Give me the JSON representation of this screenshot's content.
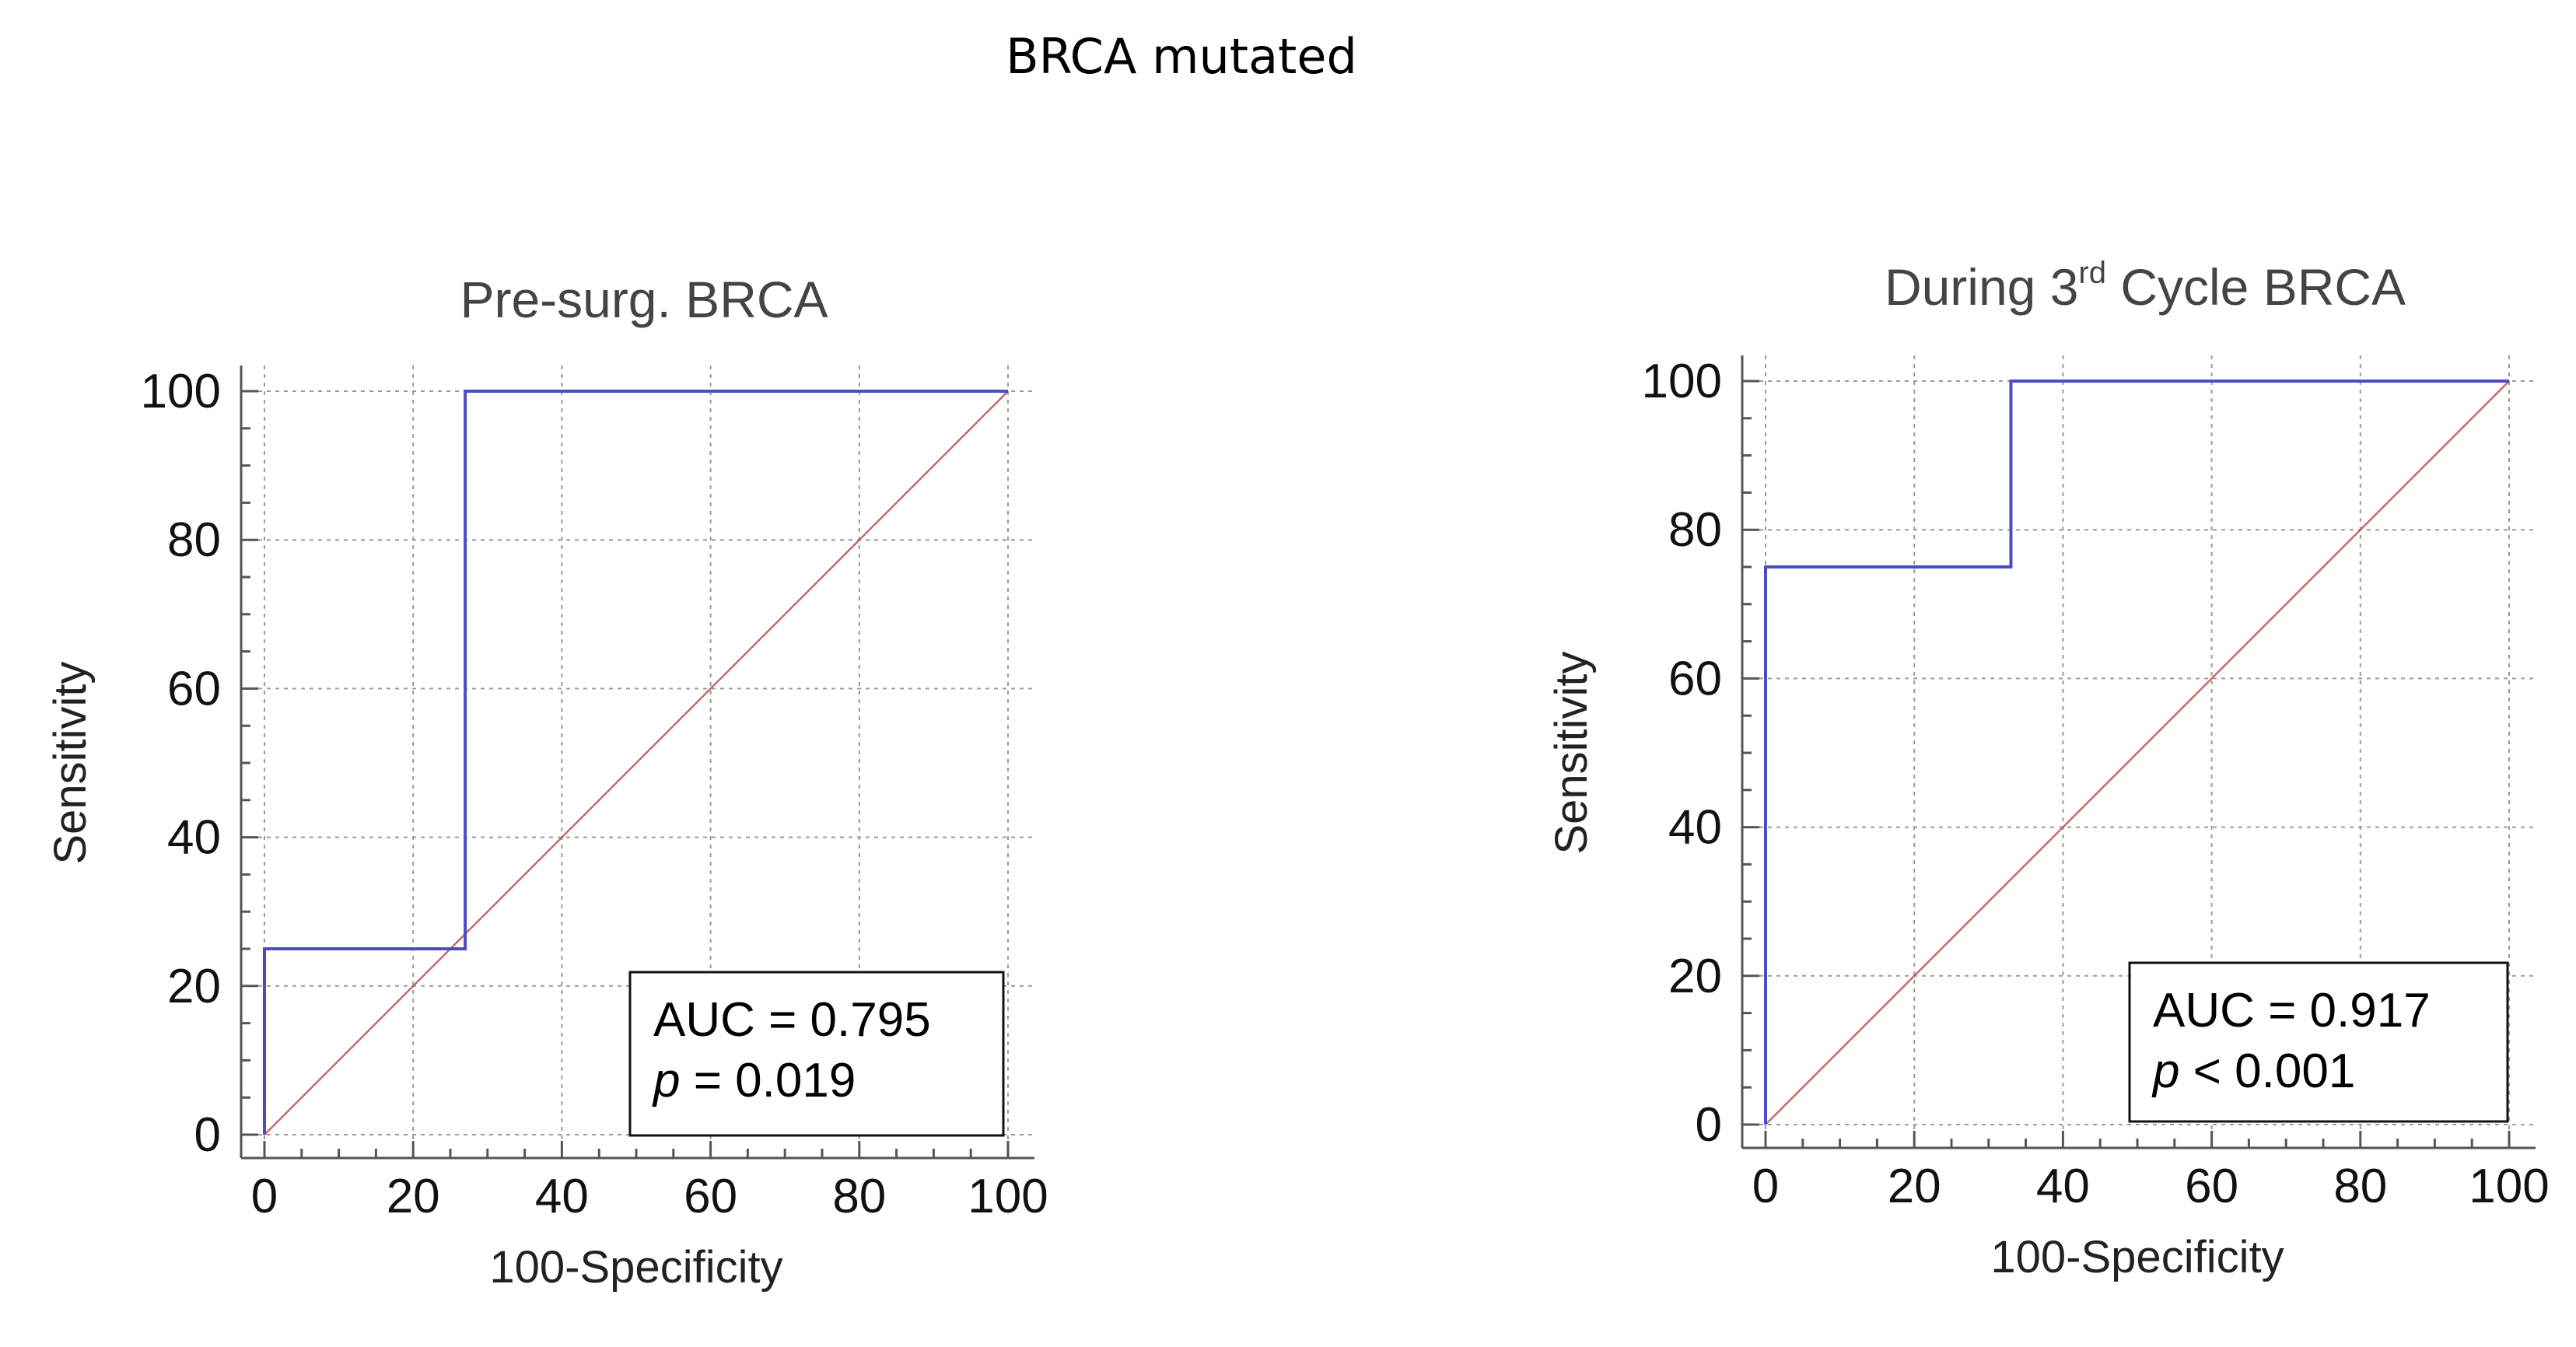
{
  "figure": {
    "title": "BRCA mutated"
  },
  "colors": {
    "roc_curve": "#4b4bc8",
    "reference_line": "#c0504d",
    "grid": "#9a9a9a"
  },
  "chart_data": [
    {
      "type": "line",
      "title": "Pre-surg. BRCA",
      "title_superscript": "",
      "title_suffix": "",
      "xlabel": "100-Specificity",
      "ylabel": "Sensitivity",
      "xlim": [
        0,
        100
      ],
      "ylim": [
        0,
        100
      ],
      "xticks": [
        "0",
        "20",
        "40",
        "60",
        "80",
        "100"
      ],
      "yticks": [
        "0",
        "20",
        "40",
        "60",
        "80",
        "100"
      ],
      "grid": true,
      "series": [
        {
          "name": "ROC curve",
          "x": [
            0,
            0,
            27,
            27,
            100
          ],
          "y": [
            0,
            25,
            25,
            100,
            100
          ]
        },
        {
          "name": "Reference",
          "x": [
            0,
            100
          ],
          "y": [
            0,
            100
          ]
        }
      ],
      "annotation": {
        "position": "bottom-right",
        "auc_text": "AUC = 0.795",
        "p_symbol": "p",
        "p_text": " = 0.019"
      }
    },
    {
      "type": "line",
      "title": "During 3",
      "title_superscript": "rd",
      "title_suffix": " Cycle BRCA",
      "xlabel": "100-Specificity",
      "ylabel": "Sensitivity",
      "xlim": [
        0,
        100
      ],
      "ylim": [
        0,
        100
      ],
      "xticks": [
        "0",
        "20",
        "40",
        "60",
        "80",
        "100"
      ],
      "yticks": [
        "0",
        "20",
        "40",
        "60",
        "80",
        "100"
      ],
      "grid": true,
      "series": [
        {
          "name": "ROC curve",
          "x": [
            0,
            0,
            33,
            33,
            100
          ],
          "y": [
            0,
            75,
            75,
            100,
            100
          ]
        },
        {
          "name": "Reference",
          "x": [
            0,
            100
          ],
          "y": [
            0,
            100
          ]
        }
      ],
      "annotation": {
        "position": "bottom-right",
        "auc_text": "AUC = 0.917",
        "p_symbol": "p",
        "p_text": " < 0.001"
      }
    }
  ]
}
